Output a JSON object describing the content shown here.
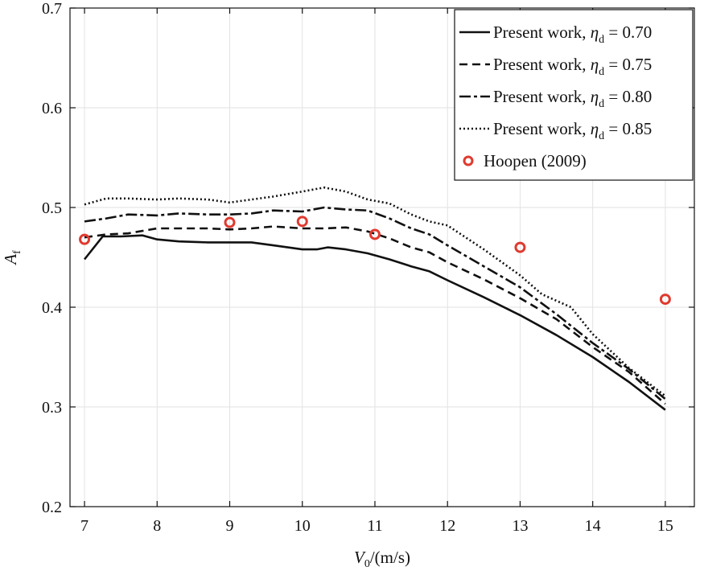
{
  "chart_data": {
    "type": "line",
    "xlabel": {
      "main": "V",
      "sub": "0",
      "tail": "/(m/s)"
    },
    "ylabel": {
      "main": "A",
      "sub": "f"
    },
    "xlim": [
      6.8,
      15.4
    ],
    "ylim": [
      0.2,
      0.7
    ],
    "xticks": [
      "7",
      "8",
      "9",
      "10",
      "11",
      "12",
      "13",
      "14",
      "15"
    ],
    "yticks": [
      "0.2",
      "0.3",
      "0.4",
      "0.5",
      "0.6",
      "0.7"
    ],
    "grid": true,
    "legend_position": "top-right",
    "series": [
      {
        "label": {
          "prefix": "Present work, ",
          "symbol": "η",
          "sub": "d",
          "suffix": " = 0.70"
        },
        "style": "solid",
        "x": [
          7.0,
          7.25,
          7.5,
          7.8,
          8.0,
          8.3,
          8.7,
          9.0,
          9.3,
          9.6,
          10.0,
          10.2,
          10.35,
          10.6,
          10.9,
          11.2,
          11.5,
          11.75,
          12.0,
          12.5,
          13.0,
          13.5,
          14.0,
          14.5,
          15.0
        ],
        "y": [
          0.448,
          0.471,
          0.471,
          0.472,
          0.468,
          0.466,
          0.465,
          0.465,
          0.465,
          0.462,
          0.458,
          0.458,
          0.46,
          0.458,
          0.454,
          0.448,
          0.441,
          0.436,
          0.427,
          0.41,
          0.392,
          0.372,
          0.35,
          0.325,
          0.297
        ]
      },
      {
        "label": {
          "prefix": "Present work, ",
          "symbol": "η",
          "sub": "d",
          "suffix": " = 0.75"
        },
        "style": "dashed",
        "x": [
          7.0,
          7.3,
          7.6,
          8.0,
          8.3,
          8.7,
          9.0,
          9.3,
          9.6,
          10.0,
          10.3,
          10.6,
          10.9,
          11.2,
          11.5,
          11.75,
          12.0,
          12.5,
          13.0,
          13.5,
          14.0,
          14.5,
          15.0
        ],
        "y": [
          0.47,
          0.473,
          0.474,
          0.479,
          0.479,
          0.479,
          0.478,
          0.479,
          0.481,
          0.479,
          0.479,
          0.48,
          0.476,
          0.469,
          0.46,
          0.455,
          0.445,
          0.428,
          0.409,
          0.388,
          0.36,
          0.335,
          0.303
        ]
      },
      {
        "label": {
          "prefix": "Present work, ",
          "symbol": "η",
          "sub": "d",
          "suffix": " = 0.80"
        },
        "style": "dashdot",
        "x": [
          7.0,
          7.3,
          7.6,
          8.0,
          8.3,
          8.7,
          9.0,
          9.3,
          9.6,
          10.0,
          10.3,
          10.6,
          10.9,
          11.2,
          11.5,
          11.75,
          12.0,
          12.5,
          13.0,
          13.5,
          14.0,
          14.5,
          15.0
        ],
        "y": [
          0.486,
          0.489,
          0.493,
          0.492,
          0.494,
          0.493,
          0.493,
          0.494,
          0.497,
          0.496,
          0.5,
          0.498,
          0.497,
          0.489,
          0.479,
          0.473,
          0.462,
          0.441,
          0.42,
          0.393,
          0.364,
          0.338,
          0.308
        ]
      },
      {
        "label": {
          "prefix": "Present work, ",
          "symbol": "η",
          "sub": "d",
          "suffix": " = 0.85"
        },
        "style": "dotted",
        "x": [
          7.0,
          7.3,
          7.6,
          8.0,
          8.3,
          8.7,
          9.0,
          9.3,
          9.6,
          10.0,
          10.3,
          10.6,
          10.9,
          11.2,
          11.5,
          11.75,
          12.0,
          12.5,
          13.0,
          13.3,
          13.7,
          14.0,
          14.5,
          15.0
        ],
        "y": [
          0.503,
          0.509,
          0.509,
          0.508,
          0.509,
          0.508,
          0.505,
          0.508,
          0.511,
          0.516,
          0.52,
          0.516,
          0.508,
          0.504,
          0.493,
          0.486,
          0.482,
          0.458,
          0.432,
          0.413,
          0.4,
          0.373,
          0.339,
          0.311
        ]
      },
      {
        "label": {
          "prefix": "Hoopen (2009)",
          "symbol": "",
          "sub": "",
          "suffix": ""
        },
        "style": "markers",
        "color": "#e03a2f",
        "x": [
          7,
          9,
          10,
          11,
          13,
          15
        ],
        "y": [
          0.468,
          0.485,
          0.486,
          0.473,
          0.46,
          0.408
        ]
      }
    ]
  }
}
